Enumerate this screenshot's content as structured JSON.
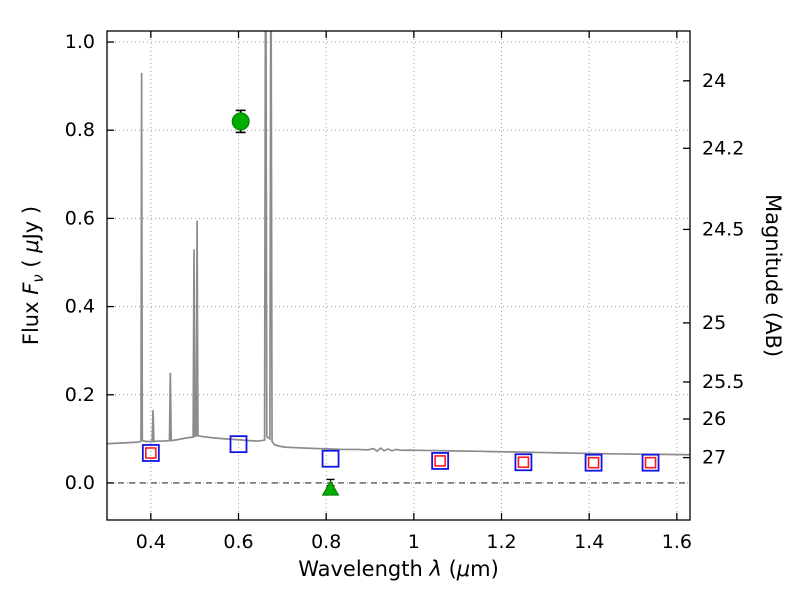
{
  "chart_data": {
    "type": "line",
    "title": "",
    "xlabel": "Wavelength λ (μm)",
    "ylabel_left": "Flux Fν ( μJy )",
    "ylabel_right": "Magnitude (AB)",
    "xlim": [
      0.3,
      1.63
    ],
    "ylim": [
      -0.084,
      1.025
    ],
    "grid": "dotted",
    "legend": "none",
    "labels": {
      "x": {
        "prefix": "Wavelength  ",
        "symbol": "λ",
        "unit_open": " (",
        "unit_mu": "μ",
        "unit_close": "m)"
      },
      "y_left": {
        "prefix": "Flux  ",
        "symbol": "F",
        "subscript": "ν",
        "unit_open": "  ( ",
        "unit_mu": "μ",
        "unit_close": "Jy )"
      },
      "y_right": {
        "text": "Magnitude (AB)"
      }
    },
    "x_ticks": [
      {
        "v": 0.4,
        "label": "0.4"
      },
      {
        "v": 0.6,
        "label": "0.6"
      },
      {
        "v": 0.8,
        "label": "0.8"
      },
      {
        "v": 1.0,
        "label": "1"
      },
      {
        "v": 1.2,
        "label": "1.2"
      },
      {
        "v": 1.4,
        "label": "1.4"
      },
      {
        "v": 1.6,
        "label": "1.6"
      }
    ],
    "y_ticks_left": [
      {
        "v": 0.0,
        "label": "0.0"
      },
      {
        "v": 0.2,
        "label": "0.2"
      },
      {
        "v": 0.4,
        "label": "0.4"
      },
      {
        "v": 0.6,
        "label": "0.6"
      },
      {
        "v": 0.8,
        "label": "0.8"
      },
      {
        "v": 1.0,
        "label": "1.0"
      }
    ],
    "y_ticks_right": [
      {
        "label": "24",
        "flux": 0.912
      },
      {
        "label": "24.2",
        "flux": 0.759
      },
      {
        "label": "24.5",
        "flux": 0.575
      },
      {
        "label": "25",
        "flux": 0.363
      },
      {
        "label": "25.5",
        "flux": 0.229
      },
      {
        "label": "26",
        "flux": 0.145
      },
      {
        "label": "27",
        "flux": 0.0575
      }
    ],
    "zero_line": {
      "y": 0.0,
      "style": "dashed"
    },
    "colors": {
      "spectrum": "#8c8c8c",
      "square_outer": "#1414e6",
      "square_inner": "#ff1a1a",
      "observed": "#00ad00",
      "observed_edge": "#007a00",
      "errorbar": "#000000",
      "grid": "#9e9e9e",
      "zero_line": "#333333",
      "axis": "#000000"
    },
    "spectrum_points": [
      [
        0.3,
        0.089
      ],
      [
        0.32,
        0.09
      ],
      [
        0.34,
        0.091
      ],
      [
        0.36,
        0.092
      ],
      [
        0.374,
        0.093
      ],
      [
        0.3775,
        0.095
      ],
      [
        0.379,
        0.93
      ],
      [
        0.3805,
        0.096
      ],
      [
        0.39,
        0.094
      ],
      [
        0.403,
        0.094
      ],
      [
        0.405,
        0.165
      ],
      [
        0.407,
        0.094
      ],
      [
        0.418,
        0.095
      ],
      [
        0.43,
        0.095
      ],
      [
        0.4425,
        0.096
      ],
      [
        0.4445,
        0.25
      ],
      [
        0.4465,
        0.096
      ],
      [
        0.46,
        0.098
      ],
      [
        0.48,
        0.102
      ],
      [
        0.4965,
        0.104
      ],
      [
        0.4985,
        0.53
      ],
      [
        0.5005,
        0.106
      ],
      [
        0.5035,
        0.107
      ],
      [
        0.5055,
        0.595
      ],
      [
        0.5075,
        0.107
      ],
      [
        0.52,
        0.105
      ],
      [
        0.545,
        0.102
      ],
      [
        0.57,
        0.1
      ],
      [
        0.6,
        0.098
      ],
      [
        0.625,
        0.096
      ],
      [
        0.645,
        0.095
      ],
      [
        0.6595,
        0.097
      ],
      [
        0.662,
        1.45
      ],
      [
        0.6645,
        0.105
      ],
      [
        0.6715,
        0.1
      ],
      [
        0.674,
        1.3
      ],
      [
        0.6765,
        0.094
      ],
      [
        0.682,
        0.087
      ],
      [
        0.695,
        0.083
      ],
      [
        0.71,
        0.081
      ],
      [
        0.73,
        0.08
      ],
      [
        0.755,
        0.079
      ],
      [
        0.78,
        0.078
      ],
      [
        0.81,
        0.077
      ],
      [
        0.84,
        0.076
      ],
      [
        0.87,
        0.076
      ],
      [
        0.895,
        0.075
      ],
      [
        0.908,
        0.078
      ],
      [
        0.916,
        0.072
      ],
      [
        0.924,
        0.079
      ],
      [
        0.932,
        0.073
      ],
      [
        0.941,
        0.077
      ],
      [
        0.95,
        0.073
      ],
      [
        0.96,
        0.076
      ],
      [
        0.972,
        0.074
      ],
      [
        0.99,
        0.0745
      ],
      [
        1.01,
        0.074
      ],
      [
        1.04,
        0.0735
      ],
      [
        1.07,
        0.073
      ],
      [
        1.1,
        0.0725
      ],
      [
        1.14,
        0.072
      ],
      [
        1.18,
        0.071
      ],
      [
        1.22,
        0.0705
      ],
      [
        1.27,
        0.0695
      ],
      [
        1.32,
        0.0685
      ],
      [
        1.37,
        0.0675
      ],
      [
        1.42,
        0.0665
      ],
      [
        1.47,
        0.0658
      ],
      [
        1.52,
        0.0652
      ],
      [
        1.57,
        0.0648
      ],
      [
        1.63,
        0.064
      ]
    ],
    "model_photometry": [
      {
        "x": 0.4,
        "y": 0.068,
        "inner": true
      },
      {
        "x": 0.6,
        "y": 0.088,
        "inner": false
      },
      {
        "x": 0.81,
        "y": 0.055,
        "inner": false
      },
      {
        "x": 1.06,
        "y": 0.05,
        "inner": true
      },
      {
        "x": 1.25,
        "y": 0.047,
        "inner": true
      },
      {
        "x": 1.41,
        "y": 0.046,
        "inner": true
      },
      {
        "x": 1.54,
        "y": 0.046,
        "inner": true
      }
    ],
    "observed_points": {
      "detection": {
        "marker": "circle",
        "x": 0.605,
        "y": 0.82,
        "yerr": 0.025
      },
      "limit": {
        "marker": "triangle-up",
        "x": 0.81,
        "y": -0.014,
        "err_center": 0.001,
        "yerr": 0.007
      }
    }
  }
}
